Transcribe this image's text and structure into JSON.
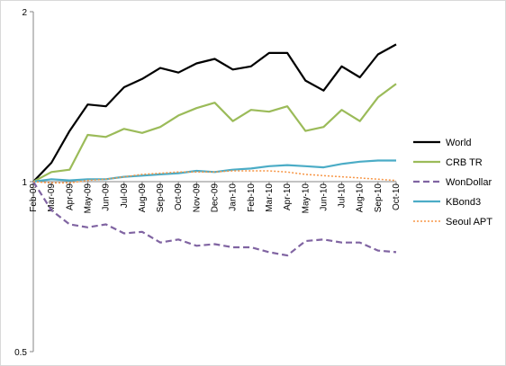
{
  "chart_data": {
    "type": "line",
    "title": "",
    "xlabel": "",
    "ylabel": "",
    "y_scale": "log",
    "ylim": [
      0.5,
      2
    ],
    "y_ticks": [
      "0.5",
      "1",
      "2"
    ],
    "grid": false,
    "legend_position": "right",
    "categories": [
      "Feb-09",
      "Mar-09",
      "Apr-09",
      "May-09",
      "Jun-09",
      "Jul-09",
      "Aug-09",
      "Sep-09",
      "Oct-09",
      "Nov-09",
      "Dec-09",
      "Jan-10",
      "Feb-10",
      "Mar-10",
      "Apr-10",
      "May-10",
      "Jun-10",
      "Jul-10",
      "Aug-10",
      "Sep-10",
      "Oct-10"
    ],
    "series": [
      {
        "name": "World",
        "color": "#000000",
        "dash": "solid",
        "values": [
          1.0,
          1.08,
          1.23,
          1.37,
          1.36,
          1.47,
          1.52,
          1.59,
          1.56,
          1.62,
          1.65,
          1.58,
          1.6,
          1.69,
          1.69,
          1.51,
          1.45,
          1.6,
          1.53,
          1.68,
          1.75
        ]
      },
      {
        "name": "CRB TR",
        "color": "#9BBB59",
        "dash": "solid",
        "values": [
          1.0,
          1.04,
          1.05,
          1.21,
          1.2,
          1.24,
          1.22,
          1.25,
          1.31,
          1.35,
          1.38,
          1.28,
          1.34,
          1.33,
          1.36,
          1.23,
          1.25,
          1.34,
          1.28,
          1.41,
          1.49
        ]
      },
      {
        "name": "WonDollar",
        "color": "#8064A2",
        "dash": "dashed",
        "values": [
          1.0,
          0.89,
          0.84,
          0.83,
          0.84,
          0.81,
          0.815,
          0.78,
          0.79,
          0.77,
          0.775,
          0.765,
          0.765,
          0.75,
          0.74,
          0.785,
          0.79,
          0.78,
          0.78,
          0.755,
          0.75
        ]
      },
      {
        "name": "KBond3",
        "color": "#4BACC6",
        "dash": "solid",
        "values": [
          1.0,
          1.01,
          1.005,
          1.01,
          1.01,
          1.02,
          1.025,
          1.03,
          1.035,
          1.045,
          1.04,
          1.05,
          1.055,
          1.065,
          1.07,
          1.065,
          1.06,
          1.075,
          1.085,
          1.09,
          1.09
        ]
      },
      {
        "name": "Seoul APT",
        "color": "#F79646",
        "dash": "dotted",
        "values": [
          1.0,
          0.995,
          0.995,
          1.005,
          1.01,
          1.02,
          1.03,
          1.035,
          1.04,
          1.04,
          1.04,
          1.045,
          1.045,
          1.045,
          1.04,
          1.03,
          1.025,
          1.02,
          1.015,
          1.01,
          1.005
        ]
      }
    ]
  }
}
